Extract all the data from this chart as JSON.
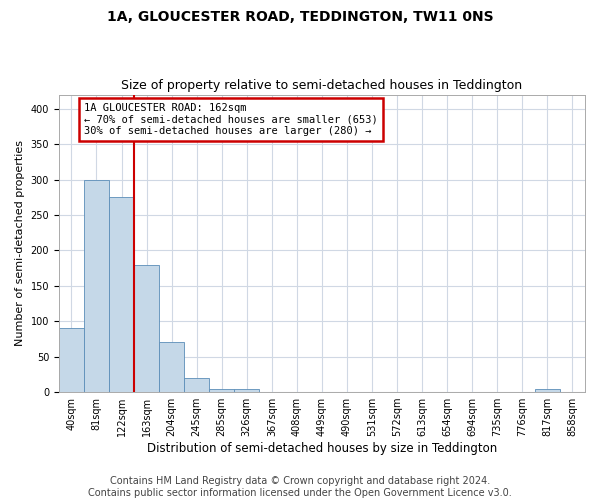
{
  "title1": "1A, GLOUCESTER ROAD, TEDDINGTON, TW11 0NS",
  "title2": "Size of property relative to semi-detached houses in Teddington",
  "xlabel": "Distribution of semi-detached houses by size in Teddington",
  "ylabel": "Number of semi-detached properties",
  "footer1": "Contains HM Land Registry data © Crown copyright and database right 2024.",
  "footer2": "Contains public sector information licensed under the Open Government Licence v3.0.",
  "bin_labels": [
    "40sqm",
    "81sqm",
    "122sqm",
    "163sqm",
    "204sqm",
    "245sqm",
    "285sqm",
    "326sqm",
    "367sqm",
    "408sqm",
    "449sqm",
    "490sqm",
    "531sqm",
    "572sqm",
    "613sqm",
    "654sqm",
    "694sqm",
    "735sqm",
    "776sqm",
    "817sqm",
    "858sqm"
  ],
  "bar_values": [
    90,
    300,
    275,
    180,
    70,
    20,
    5,
    5,
    0,
    0,
    0,
    0,
    0,
    0,
    0,
    0,
    0,
    0,
    0,
    4,
    0
  ],
  "bar_color": "#c5d8e8",
  "bar_edge_color": "#5b8db8",
  "vline_x_index": 3,
  "vline_color": "#cc0000",
  "annotation_line1": "1A GLOUCESTER ROAD: 162sqm",
  "annotation_line2": "← 70% of semi-detached houses are smaller (653)",
  "annotation_line3": "30% of semi-detached houses are larger (280) →",
  "annotation_box_color": "#ffffff",
  "annotation_box_edge_color": "#cc0000",
  "ylim": [
    0,
    420
  ],
  "yticks": [
    0,
    50,
    100,
    150,
    200,
    250,
    300,
    350,
    400
  ],
  "background_color": "#ffffff",
  "grid_color": "#d0d8e4",
  "title1_fontsize": 10,
  "title2_fontsize": 9,
  "tick_labelsize": 7,
  "ylabel_fontsize": 8,
  "xlabel_fontsize": 8.5,
  "footer_fontsize": 7
}
